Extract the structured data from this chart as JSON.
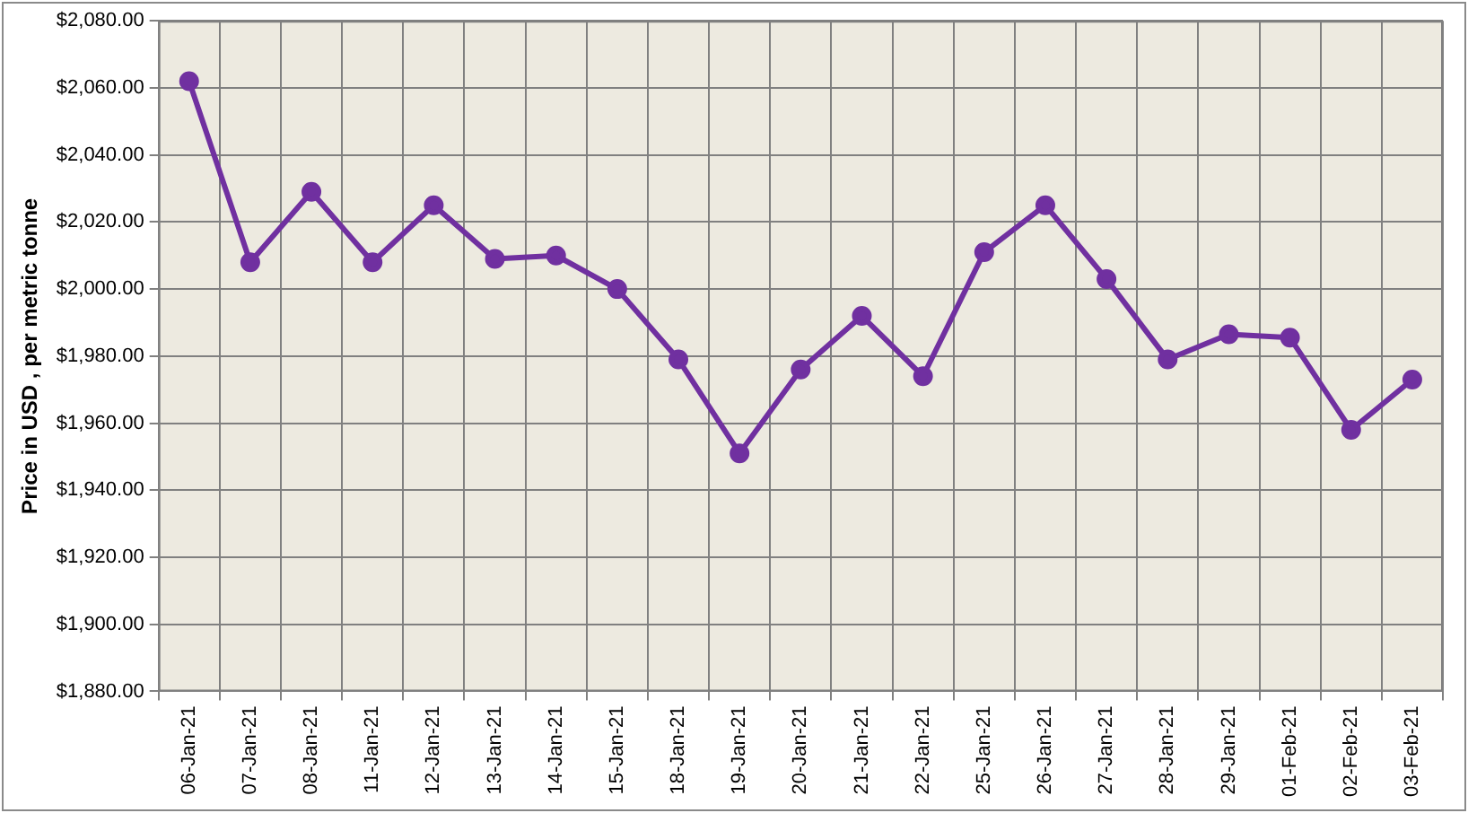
{
  "chart_data": {
    "type": "line",
    "ylabel": "Price in USD , per metric tonne",
    "categories": [
      "06-Jan-21",
      "07-Jan-21",
      "08-Jan-21",
      "11-Jan-21",
      "12-Jan-21",
      "13-Jan-21",
      "14-Jan-21",
      "15-Jan-21",
      "18-Jan-21",
      "19-Jan-21",
      "20-Jan-21",
      "21-Jan-21",
      "22-Jan-21",
      "25-Jan-21",
      "26-Jan-21",
      "27-Jan-21",
      "28-Jan-21",
      "29-Jan-21",
      "01-Feb-21",
      "02-Feb-21",
      "03-Feb-21"
    ],
    "series": [
      {
        "color": "#7030a0",
        "values": [
          2062,
          2008,
          2029,
          2008,
          2025,
          2009,
          2010,
          2000,
          1979,
          1951,
          1976,
          1992,
          1974,
          2011,
          2025,
          2003,
          1979,
          1986.5,
          1985.5,
          1958,
          1973
        ]
      }
    ],
    "ylim": [
      1880,
      2080
    ],
    "yticks": [
      {
        "value": 1880,
        "label": "$1,880.00"
      },
      {
        "value": 1900,
        "label": "$1,900.00"
      },
      {
        "value": 1920,
        "label": "$1,920.00"
      },
      {
        "value": 1940,
        "label": "$1,940.00"
      },
      {
        "value": 1960,
        "label": "$1,960.00"
      },
      {
        "value": 1980,
        "label": "$1,980.00"
      },
      {
        "value": 2000,
        "label": "$2,000.00"
      },
      {
        "value": 2020,
        "label": "$2,020.00"
      },
      {
        "value": 2040,
        "label": "$2,040.00"
      },
      {
        "value": 2060,
        "label": "$2,060.00"
      },
      {
        "value": 2080,
        "label": "$2,080.00"
      }
    ],
    "grid": true,
    "legend": false,
    "marker": "circle",
    "line_style": "solid"
  }
}
